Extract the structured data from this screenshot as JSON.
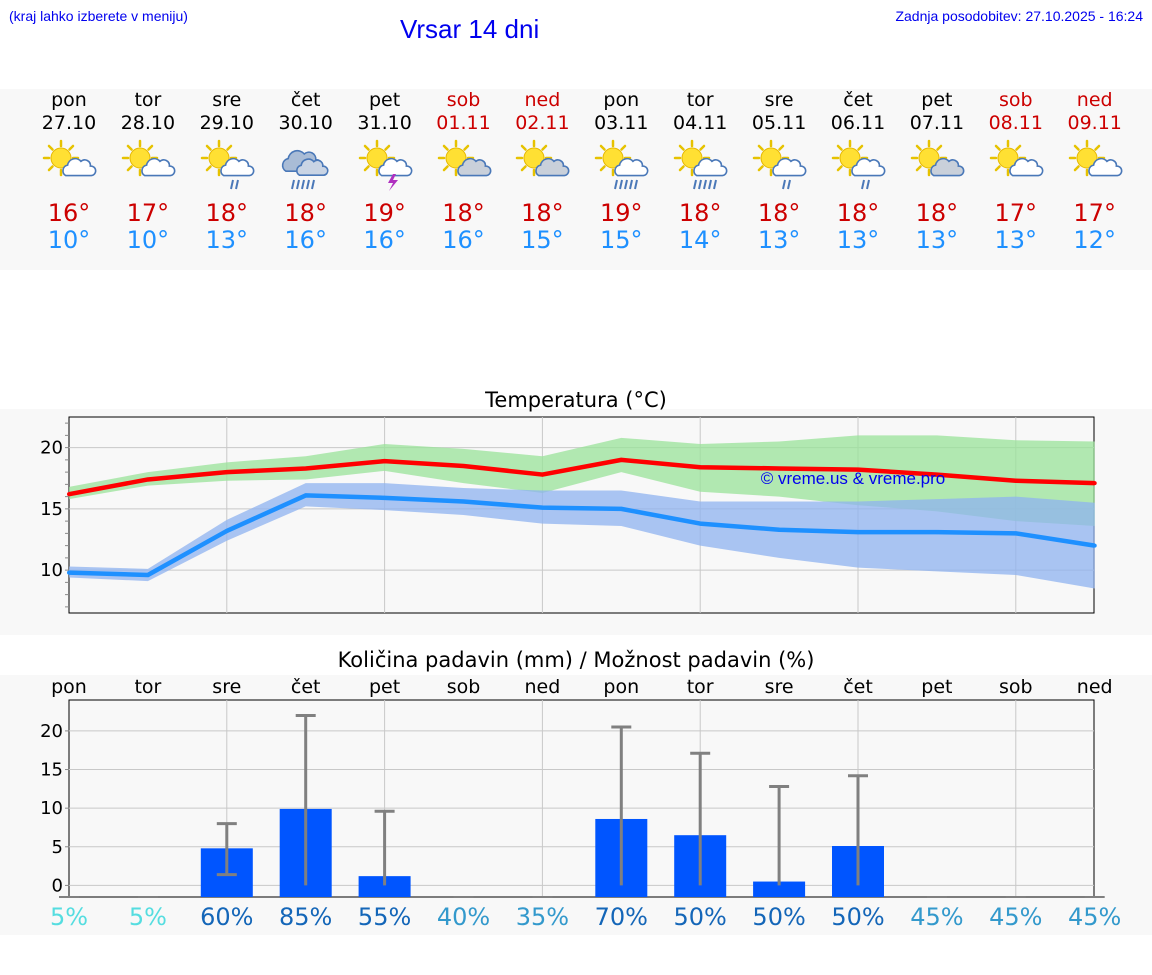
{
  "header": {
    "hint": "(kraj lahko izberete v meniju)",
    "title": "Vrsar 14 dni",
    "updated": "Zadnja posodobitev: 27.10.2025 - 16:24"
  },
  "colors": {
    "weekend": "#cc0000",
    "max": "#cc0000",
    "min": "#1e90ff",
    "bar": "#0055ff"
  },
  "days": [
    {
      "name": "pon",
      "date": "27.10",
      "weekend": false,
      "icon": "sun-cloud-icon",
      "max": "16°",
      "min": "10°"
    },
    {
      "name": "tor",
      "date": "28.10",
      "weekend": false,
      "icon": "sun-cloud-icon",
      "max": "17°",
      "min": "10°"
    },
    {
      "name": "sre",
      "date": "29.10",
      "weekend": false,
      "icon": "sun-cloud-rain-icon",
      "max": "18°",
      "min": "13°"
    },
    {
      "name": "čet",
      "date": "30.10",
      "weekend": false,
      "icon": "cloud-rain-icon",
      "max": "18°",
      "min": "16°"
    },
    {
      "name": "pet",
      "date": "31.10",
      "weekend": false,
      "icon": "sun-cloud-storm-icon",
      "max": "19°",
      "min": "16°"
    },
    {
      "name": "sob",
      "date": "01.11",
      "weekend": true,
      "icon": "sun-grey-cloud-icon",
      "max": "18°",
      "min": "16°"
    },
    {
      "name": "ned",
      "date": "02.11",
      "weekend": true,
      "icon": "sun-grey-cloud-icon",
      "max": "18°",
      "min": "15°"
    },
    {
      "name": "pon",
      "date": "03.11",
      "weekend": false,
      "icon": "sun-cloud-heavy-rain-icon",
      "max": "19°",
      "min": "15°"
    },
    {
      "name": "tor",
      "date": "04.11",
      "weekend": false,
      "icon": "sun-cloud-heavy-rain-icon",
      "max": "18°",
      "min": "14°"
    },
    {
      "name": "sre",
      "date": "05.11",
      "weekend": false,
      "icon": "sun-cloud-rain-icon",
      "max": "18°",
      "min": "13°"
    },
    {
      "name": "čet",
      "date": "06.11",
      "weekend": false,
      "icon": "sun-cloud-rain-icon",
      "max": "18°",
      "min": "13°"
    },
    {
      "name": "pet",
      "date": "07.11",
      "weekend": false,
      "icon": "sun-grey-cloud-icon",
      "max": "18°",
      "min": "13°"
    },
    {
      "name": "sob",
      "date": "08.11",
      "weekend": true,
      "icon": "sun-cloud-icon",
      "max": "17°",
      "min": "13°"
    },
    {
      "name": "ned",
      "date": "09.11",
      "weekend": true,
      "icon": "sun-cloud-icon",
      "max": "17°",
      "min": "12°"
    }
  ],
  "chart_data": [
    {
      "type": "line",
      "title": "Temperatura (°C)",
      "watermark": "© vreme.us & vreme.pro",
      "ylim": [
        6.5,
        22.5
      ],
      "yticks": [
        "10",
        "15",
        "20"
      ],
      "series": [
        {
          "name": "max",
          "color": "#ff0000",
          "values": [
            16.2,
            17.4,
            18.0,
            18.3,
            18.9,
            18.5,
            17.8,
            19.0,
            18.4,
            18.3,
            18.2,
            17.8,
            17.3,
            17.1
          ]
        },
        {
          "name": "min",
          "color": "#1e90ff",
          "values": [
            9.8,
            9.6,
            13.2,
            16.1,
            15.9,
            15.6,
            15.1,
            15.0,
            13.8,
            13.3,
            13.1,
            13.1,
            13.0,
            12.0
          ]
        }
      ],
      "bands": [
        {
          "name": "max-range",
          "color": "#9ae39a",
          "low": [
            15.8,
            16.9,
            17.3,
            17.4,
            18.1,
            17.1,
            16.3,
            18.0,
            16.4,
            16.0,
            15.3,
            14.8,
            14.0,
            13.6
          ],
          "high": [
            16.8,
            18.0,
            18.8,
            19.3,
            20.3,
            19.9,
            19.3,
            20.8,
            20.3,
            20.5,
            21.0,
            21.0,
            20.6,
            20.5
          ]
        },
        {
          "name": "min-range",
          "color": "#8fb3f0",
          "low": [
            9.4,
            9.1,
            12.4,
            15.2,
            14.9,
            14.5,
            13.8,
            13.6,
            12.0,
            11.0,
            10.2,
            9.9,
            9.6,
            8.5
          ],
          "high": [
            10.3,
            10.1,
            14.1,
            17.1,
            17.1,
            16.7,
            16.5,
            16.5,
            15.6,
            15.6,
            15.6,
            15.8,
            16.0,
            15.5
          ]
        }
      ]
    },
    {
      "type": "bar",
      "title": "Količina padavin (mm) / Možnost padavin (%)",
      "categories": [
        "pon",
        "tor",
        "sre",
        "čet",
        "pet",
        "sob",
        "ned",
        "pon",
        "tor",
        "sre",
        "čet",
        "pet",
        "sob",
        "ned"
      ],
      "ylim": [
        -1.5,
        24
      ],
      "yticks": [
        "0",
        "5",
        "10",
        "15",
        "20"
      ],
      "values": [
        0,
        0,
        4.8,
        9.9,
        1.2,
        0,
        0,
        8.6,
        6.5,
        0.5,
        5.1,
        0,
        0,
        0
      ],
      "error_high": [
        0,
        0,
        8.0,
        22.0,
        9.6,
        0,
        0,
        20.5,
        17.1,
        12.8,
        14.2,
        0,
        0,
        0
      ],
      "error_low": [
        0,
        0,
        1.4,
        0,
        0,
        0,
        0,
        0,
        0,
        0,
        0,
        0,
        0,
        0
      ],
      "probability": [
        "5%",
        "5%",
        "60%",
        "85%",
        "55%",
        "40%",
        "35%",
        "70%",
        "50%",
        "50%",
        "50%",
        "45%",
        "45%",
        "45%"
      ],
      "probability_colors": [
        "#55dde0",
        "#55dde0",
        "#1466b8",
        "#1466b8",
        "#1466b8",
        "#3399cc",
        "#3399cc",
        "#1466b8",
        "#1466b8",
        "#1466b8",
        "#1466b8",
        "#3399cc",
        "#3399cc",
        "#3399cc"
      ]
    }
  ]
}
